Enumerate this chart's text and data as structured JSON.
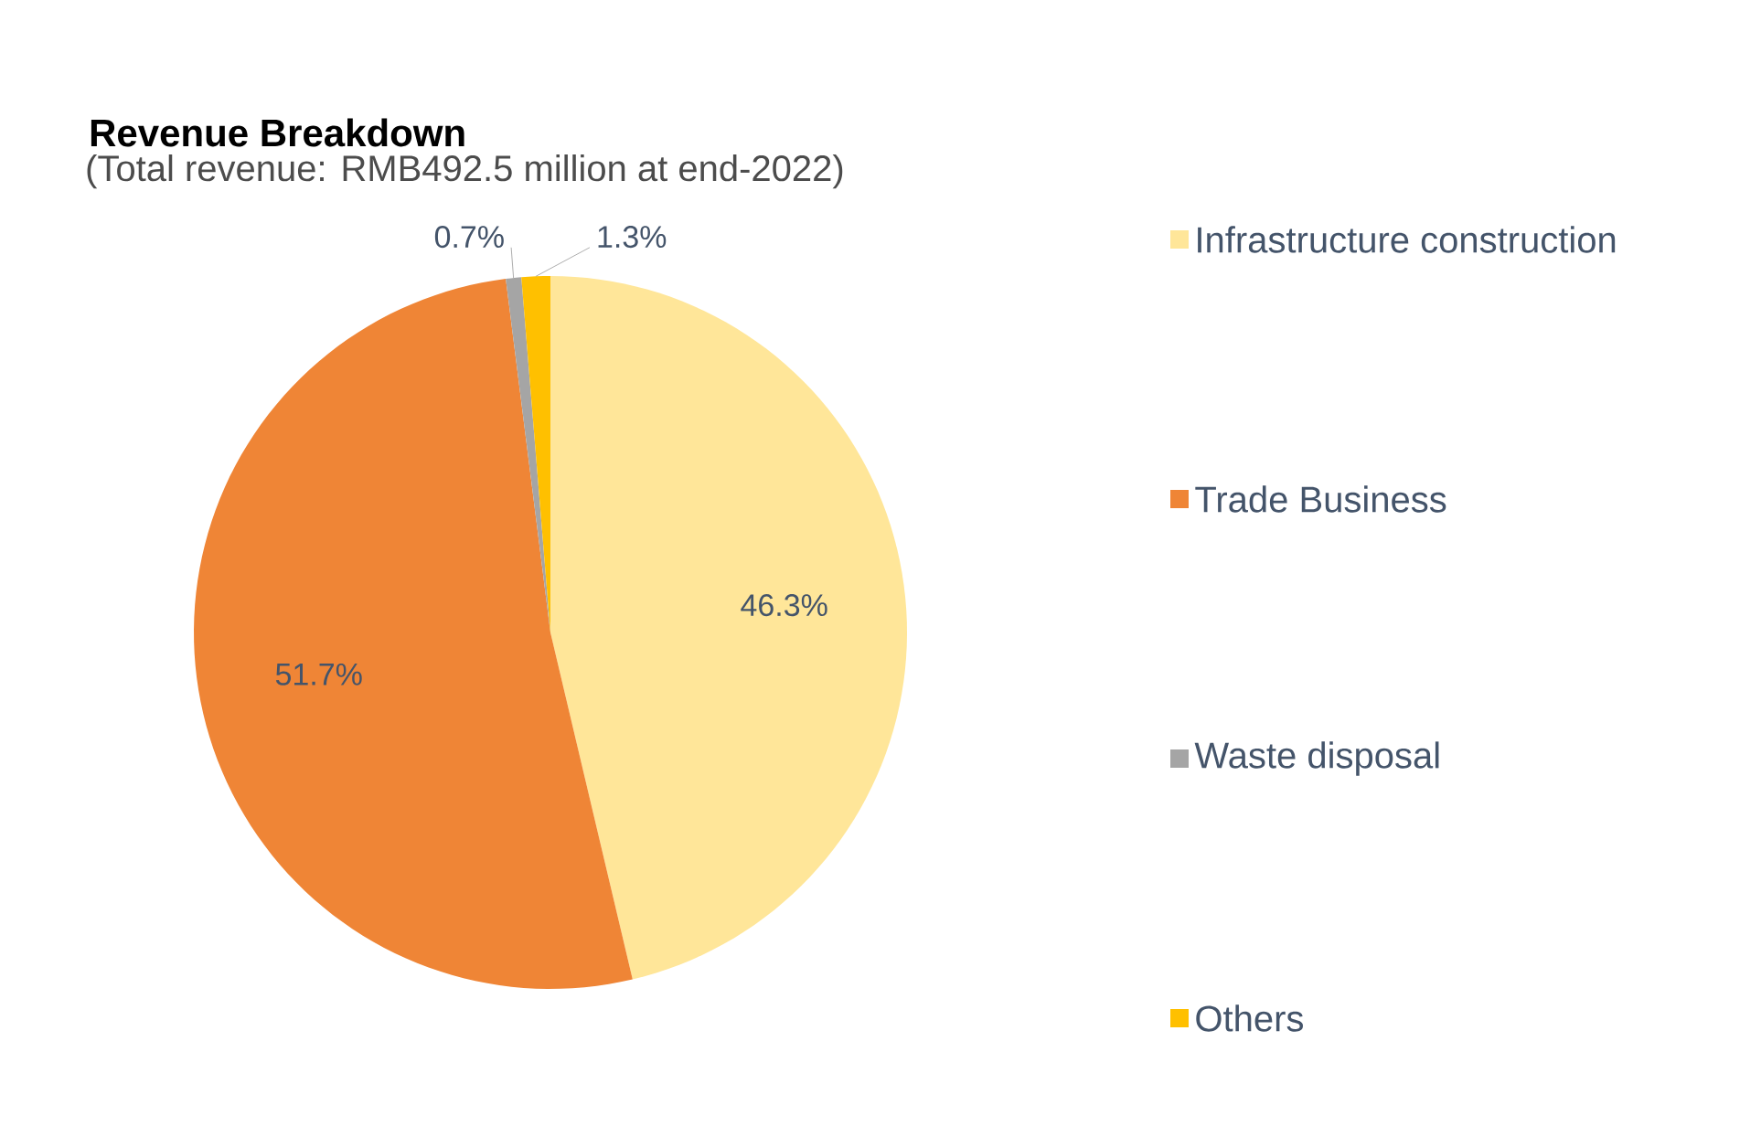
{
  "chart_data": {
    "type": "pie",
    "title": "Revenue Breakdown",
    "subtitle": "(Total revenue: RMB492.5 million at end-2022)",
    "categories": [
      "Infrastructure construction",
      "Trade Business",
      "Waste disposal",
      "Others"
    ],
    "values": [
      46.3,
      51.7,
      0.7,
      1.3
    ],
    "colors": [
      "#ffe699",
      "#ef8536",
      "#a5a5a5",
      "#ffc000"
    ],
    "value_labels": [
      "46.3%",
      "51.7%",
      "0.7%",
      "1.3%"
    ],
    "legend": "right"
  }
}
